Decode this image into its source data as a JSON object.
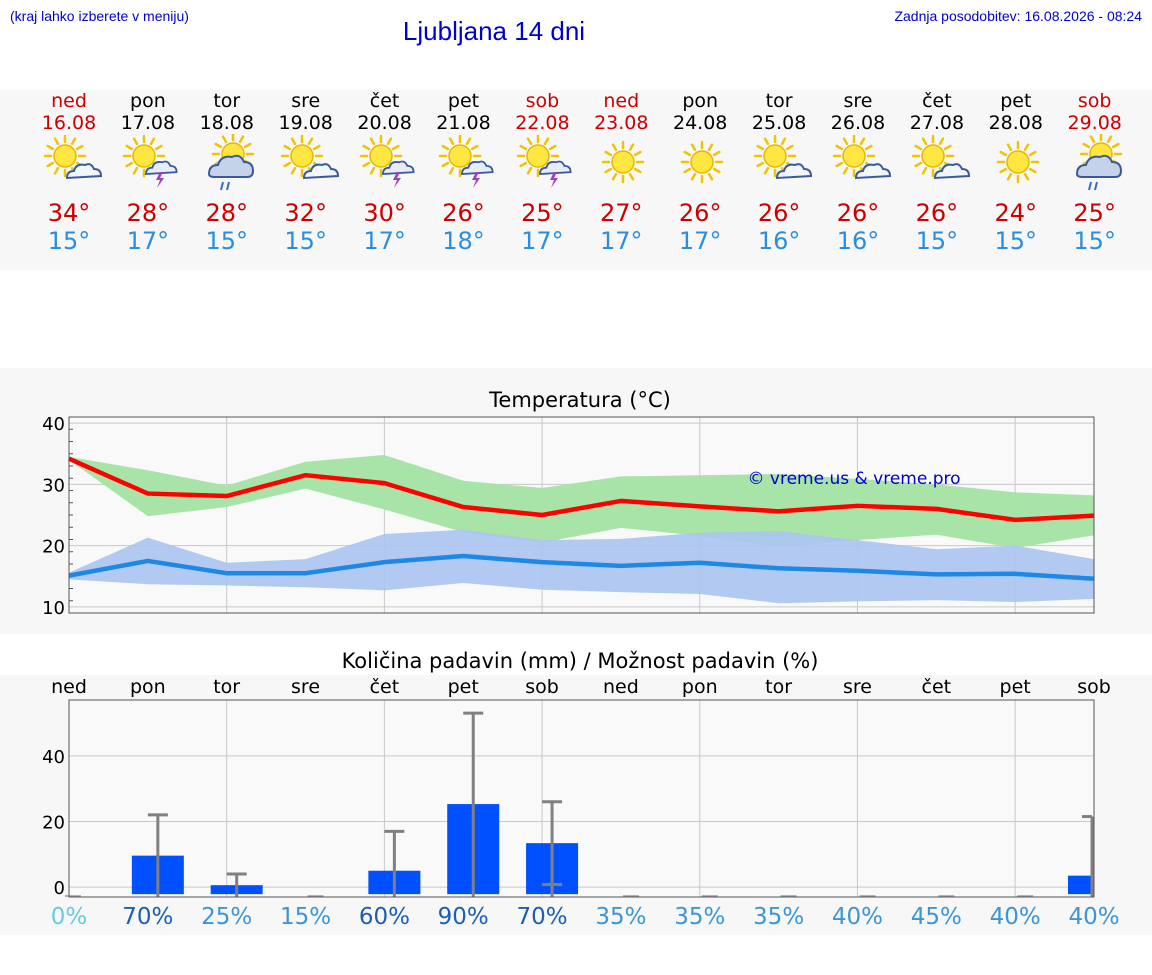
{
  "header": {
    "hint": "(kraj lahko izberete v meniju)",
    "title": "Ljubljana 14 dni",
    "updated": "Zadnja posodobitev: 16.08.2026 - 08:24"
  },
  "days": [
    {
      "name": "ned",
      "date": "16.08",
      "weekend": true,
      "icon": "sun-cloud-icon",
      "max": "34°",
      "min": "15°"
    },
    {
      "name": "pon",
      "date": "17.08",
      "weekend": false,
      "icon": "sun-storm-icon",
      "max": "28°",
      "min": "17°"
    },
    {
      "name": "tor",
      "date": "18.08",
      "weekend": false,
      "icon": "sun-rain-cloud-icon",
      "max": "28°",
      "min": "15°"
    },
    {
      "name": "sre",
      "date": "19.08",
      "weekend": false,
      "icon": "sun-cloud-icon",
      "max": "32°",
      "min": "15°"
    },
    {
      "name": "čet",
      "date": "20.08",
      "weekend": false,
      "icon": "sun-storm-icon",
      "max": "30°",
      "min": "17°"
    },
    {
      "name": "pet",
      "date": "21.08",
      "weekend": false,
      "icon": "sun-storm-icon",
      "max": "26°",
      "min": "18°"
    },
    {
      "name": "sob",
      "date": "22.08",
      "weekend": true,
      "icon": "sun-storm-icon",
      "max": "25°",
      "min": "17°"
    },
    {
      "name": "ned",
      "date": "23.08",
      "weekend": true,
      "icon": "sun-icon",
      "max": "27°",
      "min": "17°"
    },
    {
      "name": "pon",
      "date": "24.08",
      "weekend": false,
      "icon": "sun-icon",
      "max": "26°",
      "min": "17°"
    },
    {
      "name": "tor",
      "date": "25.08",
      "weekend": false,
      "icon": "sun-cloud-icon",
      "max": "26°",
      "min": "16°"
    },
    {
      "name": "sre",
      "date": "26.08",
      "weekend": false,
      "icon": "sun-cloud-icon",
      "max": "26°",
      "min": "16°"
    },
    {
      "name": "čet",
      "date": "27.08",
      "weekend": false,
      "icon": "sun-cloud-icon",
      "max": "26°",
      "min": "15°"
    },
    {
      "name": "pet",
      "date": "28.08",
      "weekend": false,
      "icon": "sun-icon",
      "max": "24°",
      "min": "15°"
    },
    {
      "name": "sob",
      "date": "29.08",
      "weekend": true,
      "icon": "sun-rain-cloud-icon",
      "max": "25°",
      "min": "15°"
    }
  ],
  "colors": {
    "weekend": "#cc0000",
    "weekday": "#000000",
    "max_line": "#ff0000",
    "min_line": "#1e88e5",
    "max_band": "#a8e4a8",
    "min_band": "#aac4f0",
    "bar": "#0050ff",
    "whisker": "#808080"
  },
  "chart_data": [
    {
      "type": "line",
      "title": "Temperatura (°C)",
      "watermark": "© vreme.us & vreme.pro",
      "x": [
        "16.08",
        "17.08",
        "18.08",
        "19.08",
        "20.08",
        "21.08",
        "22.08",
        "23.08",
        "24.08",
        "25.08",
        "26.08",
        "27.08",
        "28.08",
        "29.08"
      ],
      "ylim": [
        9,
        41
      ],
      "yticks": [
        10,
        20,
        30,
        40
      ],
      "grid": true,
      "series": [
        {
          "key": "max",
          "values": [
            34.2,
            28.5,
            28.1,
            31.5,
            30.2,
            26.3,
            25.0,
            27.3,
            26.4,
            25.6,
            26.5,
            26.0,
            24.2,
            24.9
          ],
          "band_low": [
            34.0,
            24.8,
            26.3,
            29.3,
            25.9,
            22.2,
            20.5,
            22.9,
            21.6,
            19.8,
            20.9,
            21.8,
            19.6,
            21.7
          ],
          "band_high": [
            34.5,
            32.3,
            29.8,
            33.7,
            34.8,
            30.6,
            29.4,
            31.3,
            31.5,
            31.7,
            30.9,
            30.0,
            28.7,
            28.2
          ]
        },
        {
          "key": "min",
          "values": [
            15.1,
            17.5,
            15.5,
            15.5,
            17.3,
            18.3,
            17.3,
            16.7,
            17.2,
            16.3,
            15.9,
            15.3,
            15.4,
            14.6
          ],
          "band_low": [
            14.5,
            13.7,
            13.5,
            13.2,
            12.7,
            13.9,
            12.8,
            12.4,
            12.1,
            10.6,
            10.9,
            11.1,
            10.8,
            11.3
          ],
          "band_high": [
            15.6,
            21.3,
            17.2,
            17.8,
            21.9,
            22.6,
            20.9,
            21.1,
            22.1,
            22.4,
            20.9,
            19.4,
            20.0,
            17.8
          ]
        }
      ]
    },
    {
      "type": "bar",
      "title": "Količina padavin (mm) / Možnost padavin (%)",
      "categories": [
        "ned",
        "pon",
        "tor",
        "sre",
        "čet",
        "pet",
        "sob",
        "ned",
        "pon",
        "tor",
        "sre",
        "čet",
        "pet",
        "sob"
      ],
      "values": [
        0,
        9.6,
        0.6,
        0,
        5.0,
        25.3,
        13.4,
        0,
        0,
        0,
        0,
        0,
        0,
        3.5
      ],
      "whisker_high": [
        0,
        22.0,
        4.0,
        0,
        17.0,
        53.0,
        26.0,
        0,
        0,
        0,
        0,
        0,
        0,
        21.5
      ],
      "whisker_low": [
        0,
        0,
        0,
        0,
        0,
        0,
        0.8,
        0,
        0,
        0,
        0,
        0,
        0,
        0
      ],
      "probability": [
        "0%",
        "70%",
        "25%",
        "15%",
        "60%",
        "90%",
        "70%",
        "35%",
        "35%",
        "35%",
        "40%",
        "45%",
        "40%",
        "40%"
      ],
      "probability_colors": [
        "#66ccdd",
        "#1a5fb4",
        "#3b95d6",
        "#3b95d6",
        "#1a5fb4",
        "#1a5fb4",
        "#1a5fb4",
        "#3b95d6",
        "#3b95d6",
        "#3b95d6",
        "#3b95d6",
        "#3b95d6",
        "#3b95d6",
        "#3b95d6"
      ],
      "ylim": [
        -3,
        57
      ],
      "yticks": [
        0,
        20,
        40
      ],
      "grid": true
    }
  ]
}
